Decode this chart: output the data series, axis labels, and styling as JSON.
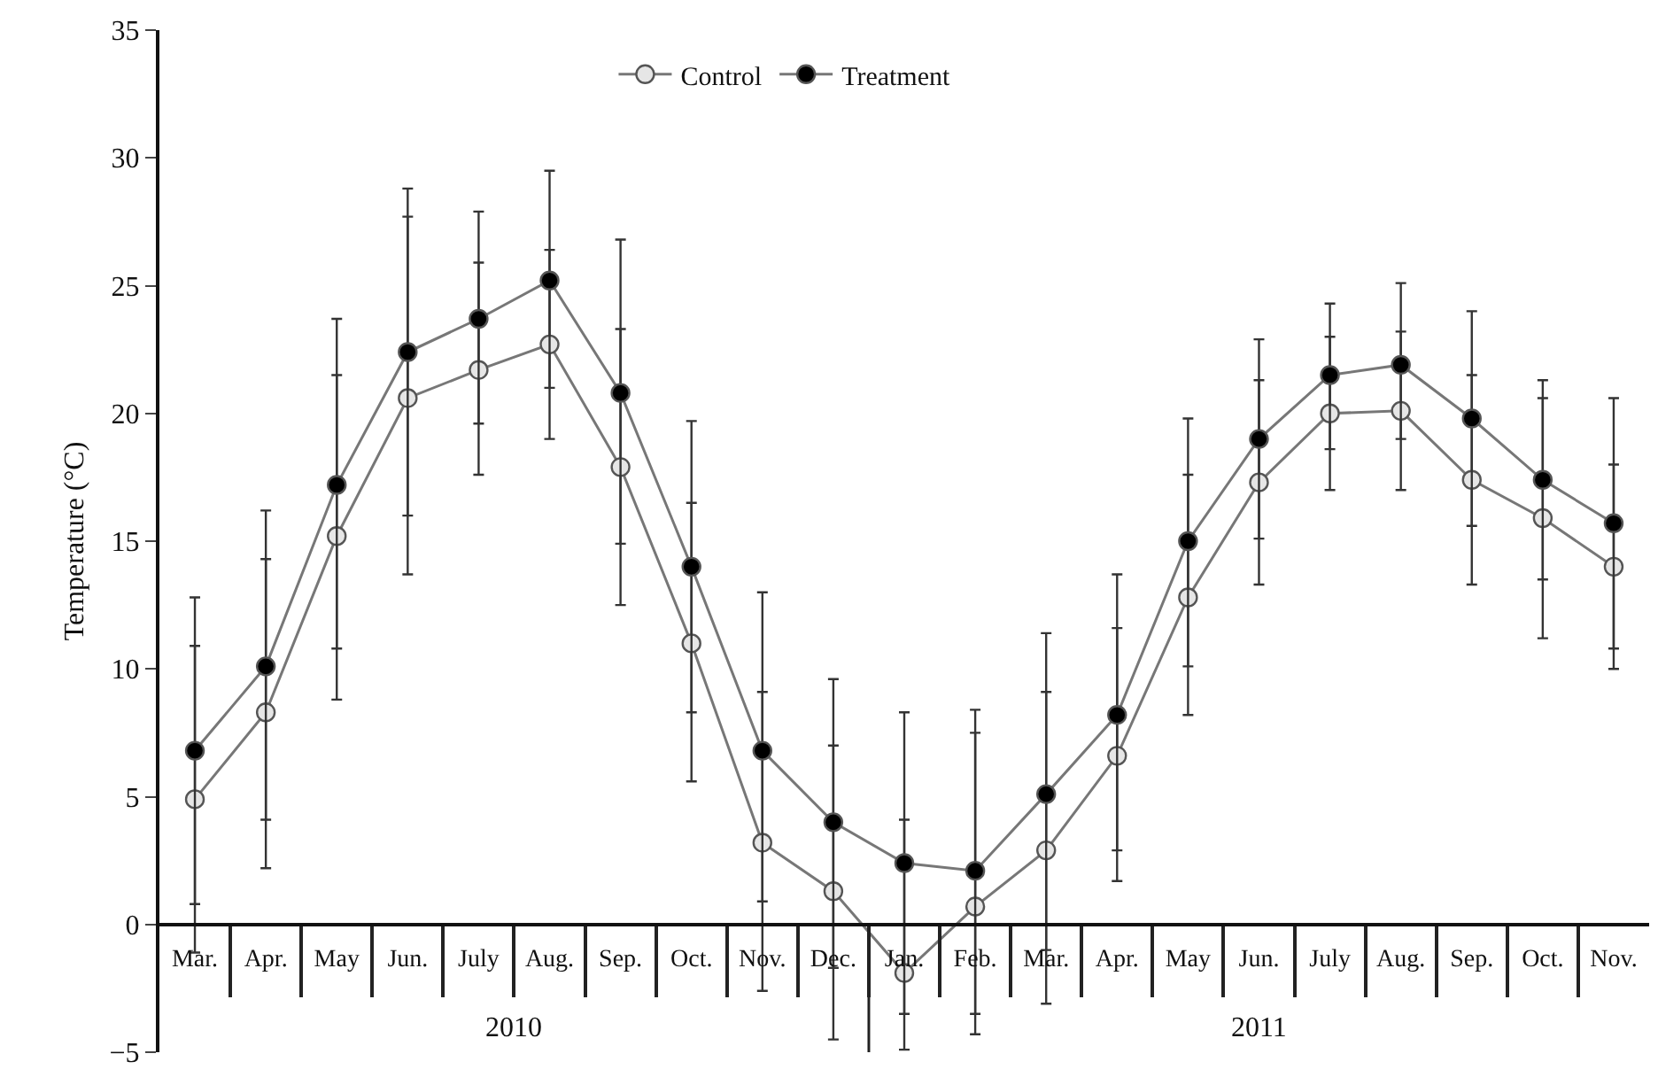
{
  "chart_data": {
    "type": "line",
    "ylabel": "Temperature (°C)",
    "categories": [
      "Mar.",
      "Apr.",
      "May",
      "Jun.",
      "July",
      "Aug.",
      "Sep.",
      "Oct.",
      "Nov.",
      "Dec.",
      "Jan.",
      "Feb.",
      "Mar.",
      "Apr.",
      "May",
      "Jun.",
      "July",
      "Aug.",
      "Sep.",
      "Oct.",
      "Nov."
    ],
    "series": [
      {
        "name": "Control",
        "color": "#e6e6e6",
        "values": [
          4.9,
          8.3,
          15.2,
          20.6,
          21.7,
          22.7,
          17.9,
          11.0,
          3.2,
          1.3,
          -1.9,
          0.7,
          2.9,
          6.6,
          12.8,
          17.3,
          20.0,
          20.1,
          17.4,
          15.9,
          14.0
        ],
        "errors": [
          [
            -1.1,
            10.9
          ],
          [
            2.2,
            14.3
          ],
          [
            8.8,
            21.5
          ],
          [
            13.7,
            27.7
          ],
          [
            17.6,
            25.9
          ],
          [
            19.0,
            26.4
          ],
          [
            12.5,
            23.3
          ],
          [
            5.6,
            16.5
          ],
          [
            -2.6,
            9.1
          ],
          [
            -4.5,
            7.0
          ],
          [
            -4.9,
            4.1
          ],
          [
            -3.5,
            7.5
          ],
          [
            -3.1,
            9.1
          ],
          [
            1.7,
            11.6
          ],
          [
            8.2,
            17.6
          ],
          [
            13.3,
            21.3
          ],
          [
            17.0,
            23.0
          ],
          [
            17.0,
            23.2
          ],
          [
            13.3,
            21.5
          ],
          [
            11.2,
            20.6
          ],
          [
            10.0,
            18.0
          ]
        ]
      },
      {
        "name": "Treatment",
        "color": "#000000",
        "values": [
          6.8,
          10.1,
          17.2,
          22.4,
          23.7,
          25.2,
          20.8,
          14.0,
          6.8,
          4.0,
          2.4,
          2.1,
          5.1,
          8.2,
          15.0,
          19.0,
          21.5,
          21.9,
          19.8,
          17.4,
          15.7
        ],
        "errors": [
          [
            0.8,
            12.8
          ],
          [
            4.1,
            16.2
          ],
          [
            10.8,
            23.7
          ],
          [
            16.0,
            28.8
          ],
          [
            19.6,
            27.9
          ],
          [
            21.0,
            29.5
          ],
          [
            14.9,
            26.8
          ],
          [
            8.3,
            19.7
          ],
          [
            0.9,
            13.0
          ],
          [
            -1.7,
            9.6
          ],
          [
            -3.5,
            8.3
          ],
          [
            -4.3,
            8.4
          ],
          [
            -1.0,
            11.4
          ],
          [
            2.9,
            13.7
          ],
          [
            10.1,
            19.8
          ],
          [
            15.1,
            22.9
          ],
          [
            18.6,
            24.3
          ],
          [
            19.0,
            25.1
          ],
          [
            15.6,
            24.0
          ],
          [
            13.5,
            21.3
          ],
          [
            10.8,
            20.6
          ]
        ]
      }
    ],
    "ylim": [
      -5,
      35
    ],
    "yticks": [
      {
        "value": -5,
        "label": "−5"
      },
      0,
      5,
      10,
      15,
      20,
      25,
      30,
      35
    ],
    "annotations": [
      "2010",
      "2011"
    ],
    "marker": "circle",
    "line_style": "solid",
    "legend": "top",
    "grid": false
  }
}
